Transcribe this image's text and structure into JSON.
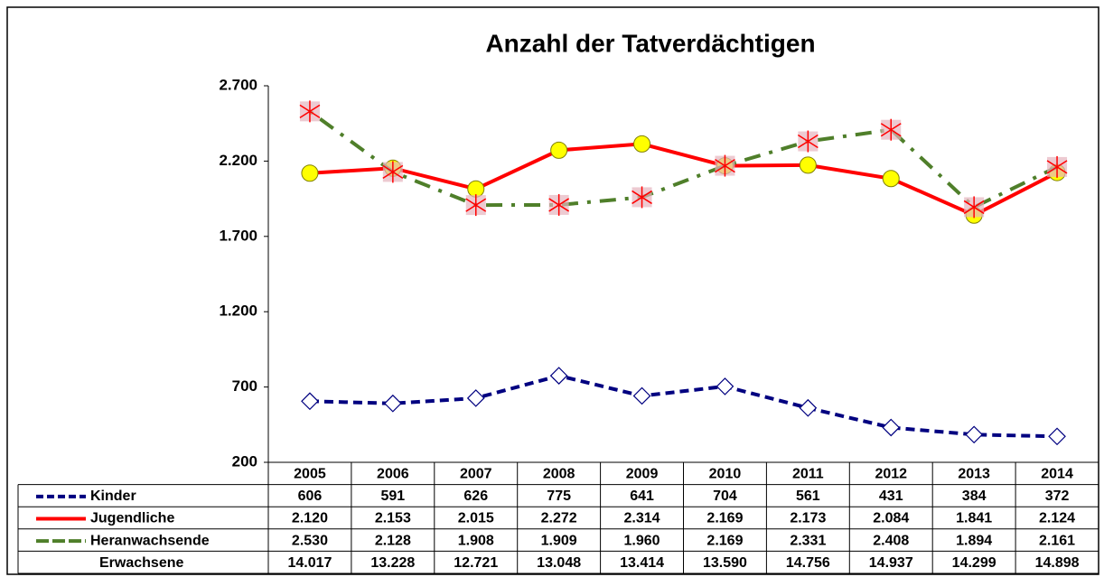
{
  "chart_data": {
    "type": "line",
    "title": "Anzahl der Tatverdächtigen",
    "categories": [
      "2005",
      "2006",
      "2007",
      "2008",
      "2009",
      "2010",
      "2011",
      "2012",
      "2013",
      "2014"
    ],
    "ylim": [
      200,
      2700
    ],
    "yticks": [
      200,
      {
        "value": 700,
        "label": "700"
      },
      {
        "value": 1200,
        "label": "1.200"
      },
      {
        "value": 1700,
        "label": "1.700"
      },
      {
        "value": 2200,
        "label": "2.200"
      },
      {
        "value": 2700,
        "label": "2.700"
      }
    ],
    "series": [
      {
        "name": "Kinder",
        "color": "#000080",
        "values": [
          606,
          591,
          626,
          775,
          641,
          704,
          561,
          431,
          384,
          372
        ]
      },
      {
        "name": "Jugendliche",
        "color": "#ff0000",
        "values": [
          2120,
          2153,
          2015,
          2272,
          2314,
          2169,
          2173,
          2084,
          1841,
          2124
        ],
        "value_labels": [
          "2.120",
          "2.153",
          "2.015",
          "2.272",
          "2.314",
          "2.169",
          "2.173",
          "2.084",
          "1.841",
          "2.124"
        ]
      },
      {
        "name": "Heranwachsende",
        "color": "#4f7f2a",
        "values": [
          2530,
          2128,
          1908,
          1909,
          1960,
          2169,
          2331,
          2408,
          1894,
          2161
        ],
        "value_labels": [
          "2.530",
          "2.128",
          "1.908",
          "1.909",
          "1.960",
          "2.169",
          "2.331",
          "2.408",
          "1.894",
          "2.161"
        ]
      },
      {
        "name": "Erwachsene",
        "values": [
          14017,
          13228,
          12721,
          13048,
          13414,
          13590,
          14756,
          14937,
          14299,
          14898
        ],
        "value_labels": [
          "14.017",
          "13.228",
          "12.721",
          "13.048",
          "13.414",
          "13.590",
          "14.756",
          "14.937",
          "14.299",
          "14.898"
        ]
      }
    ]
  }
}
